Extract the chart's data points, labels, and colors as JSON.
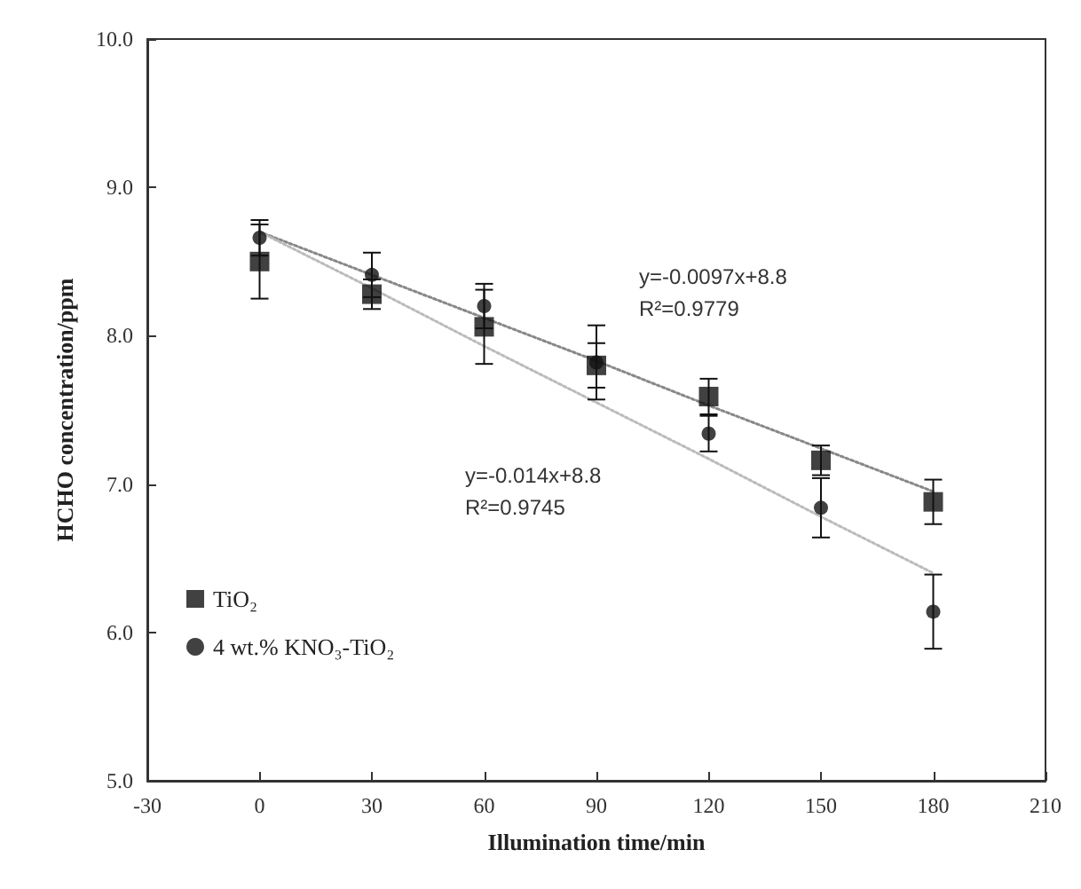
{
  "chart_data": {
    "type": "scatter",
    "xlabel": "Illumination time/min",
    "ylabel": "HCHO concentration/ppm",
    "xlim": [
      -30,
      210
    ],
    "xticks": [
      -30,
      0,
      30,
      60,
      90,
      120,
      150,
      180,
      210
    ],
    "ylim": [
      5,
      10
    ],
    "yticks": [
      {
        "value": 5,
        "label": "5.0"
      },
      {
        "value": 6,
        "label": "6.0"
      },
      {
        "value": 7,
        "label": "7.0"
      },
      {
        "value": 8,
        "label": "8.0"
      },
      {
        "value": 9,
        "label": "9.0"
      },
      {
        "value": 10,
        "label": "10.0"
      }
    ],
    "grid": false,
    "legend": "bottom left",
    "x": [
      0,
      30,
      60,
      90,
      120,
      150,
      180
    ],
    "series": [
      {
        "name": "TiO₂",
        "color": "#111111",
        "marker": "square",
        "values": [
          8.5,
          8.28,
          8.06,
          7.8,
          7.59,
          7.16,
          6.88
        ],
        "errors": [
          0.25,
          0.1,
          0.25,
          0.15,
          0.12,
          0.1,
          0.15
        ]
      },
      {
        "name": "4 wt.% KNO₃-TiO₂",
        "color": "#111111",
        "marker": "circle",
        "values": [
          8.66,
          8.41,
          8.2,
          7.82,
          7.34,
          6.84,
          6.14
        ],
        "errors": [
          0.12,
          0.15,
          0.15,
          0.25,
          0.12,
          0.2,
          0.25
        ]
      },
      {
        "type": "line",
        "color": "#888888",
        "line_style": "dotted",
        "marker": "none",
        "values": [
          8.7,
          8.41,
          8.12,
          7.83,
          7.53,
          7.24,
          6.95
        ]
      },
      {
        "type": "line",
        "color": "#bbbbbb",
        "line_style": "dotted",
        "marker": "none",
        "values": [
          8.7,
          8.32,
          7.93,
          7.55,
          7.17,
          6.78,
          6.4
        ]
      }
    ],
    "annotations": [
      "y=-0.0097x+8.8",
      "R²=0.9779",
      "y=-0.014x+8.8",
      "R²=0.9745"
    ]
  }
}
